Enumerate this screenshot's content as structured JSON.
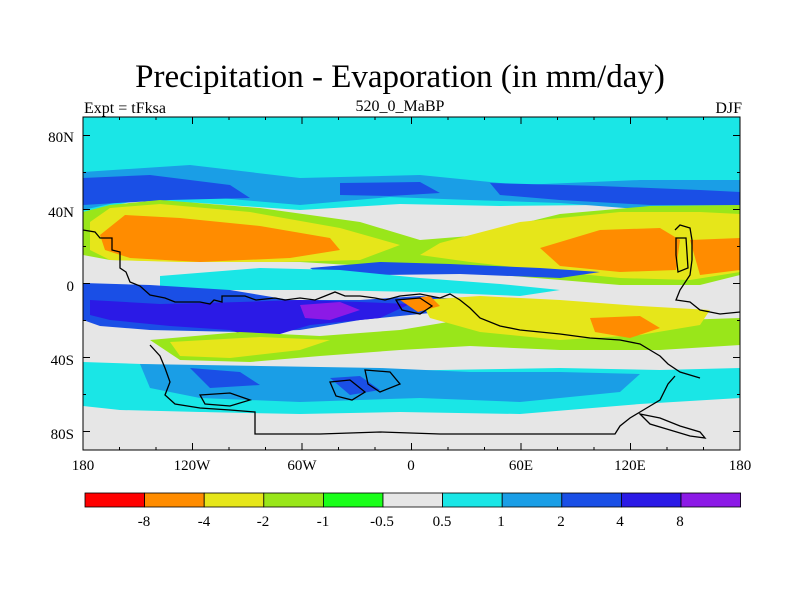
{
  "chart_data": {
    "type": "heatmap",
    "title": "Precipitation - Evaporation (in mm/day)",
    "subtitle_left": "Expt = tFksa",
    "subtitle_center": "520_0_MaBP",
    "subtitle_right": "DJF",
    "x_ticks": [
      "180",
      "120W",
      "60W",
      "0",
      "60E",
      "120E",
      "180"
    ],
    "y_ticks": [
      "80N",
      "40N",
      "0",
      "40S",
      "80S"
    ],
    "x_range": [
      -180,
      180
    ],
    "y_range": [
      -90,
      90
    ],
    "colorbar": {
      "colors": [
        "#ff0000",
        "#ff8c00",
        "#e6e61a",
        "#99e61a",
        "#1aff1a",
        "#e6e6e6",
        "#1ae6e6",
        "#1a9ee6",
        "#1a4fe6",
        "#2b1ae6",
        "#8c1ae6"
      ],
      "labels": [
        "-8",
        "-4",
        "-2",
        "-1",
        "-0.5",
        "0.5",
        "1",
        "2",
        "4",
        "8"
      ]
    }
  }
}
